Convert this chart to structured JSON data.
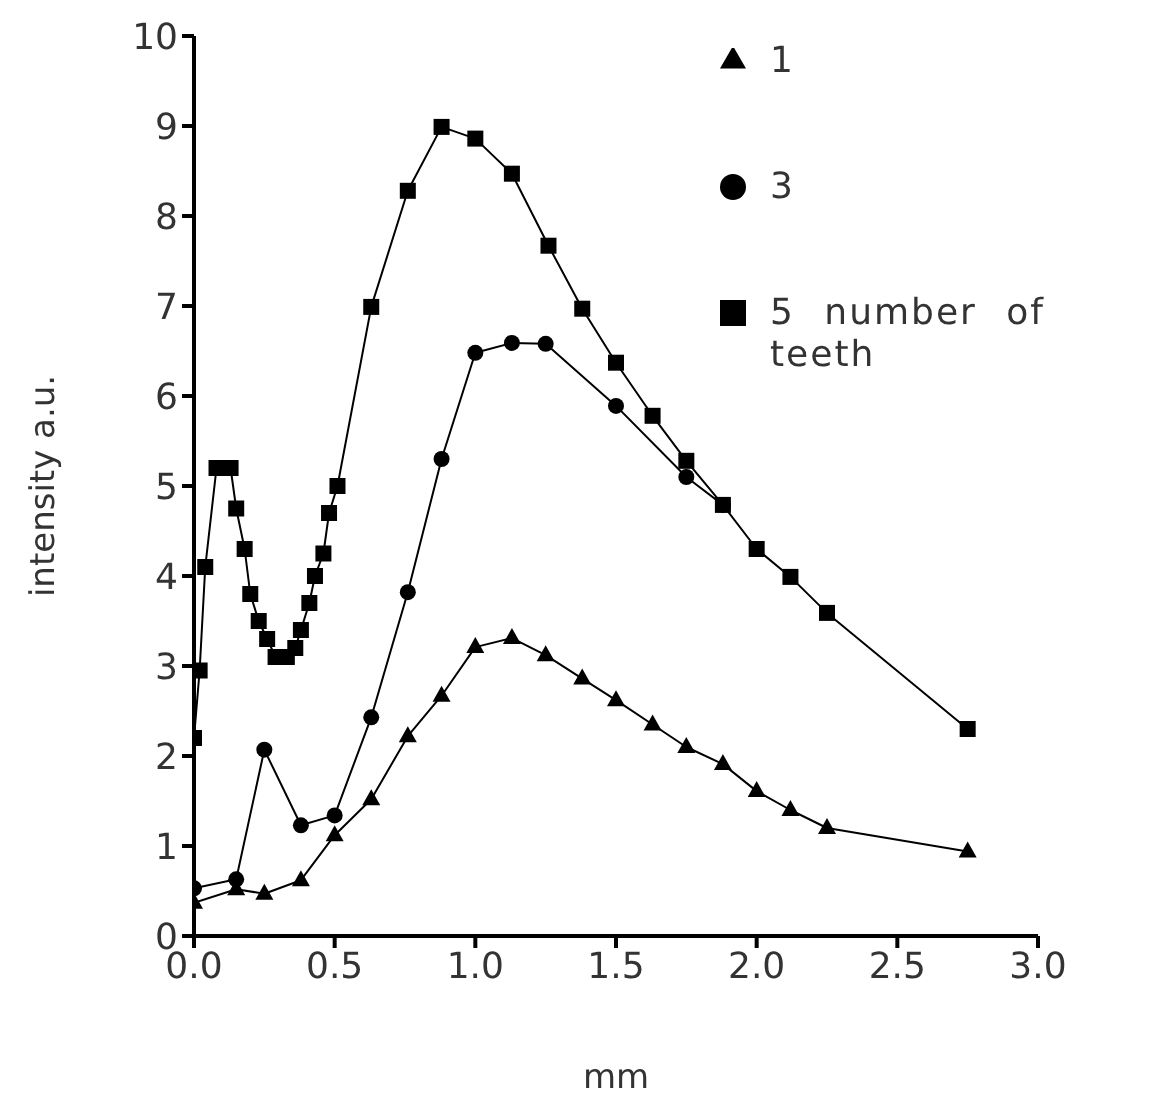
{
  "chart_data": {
    "type": "line",
    "xlabel": "mm",
    "ylabel": "intensity a.u.",
    "legend_title": "number of teeth",
    "legend": "top right",
    "grid": false,
    "line_style": "solid",
    "xlim": [
      0,
      3
    ],
    "xticks": [
      {
        "value": 0,
        "label": "0.0"
      },
      {
        "value": 0.5,
        "label": "0.5"
      },
      {
        "value": 1,
        "label": "1.0"
      },
      {
        "value": 1.5,
        "label": "1.5"
      },
      {
        "value": 2,
        "label": "2.0"
      },
      {
        "value": 2.5,
        "label": "2.5"
      },
      {
        "value": 3,
        "label": "3.0"
      }
    ],
    "ylim": [
      0,
      10
    ],
    "yticks": [
      0,
      1,
      2,
      3,
      4,
      5,
      6,
      7,
      8,
      9,
      10
    ],
    "series": [
      {
        "name": "1",
        "color": "#000000",
        "marker": "triangle",
        "x": [
          0,
          0.15,
          0.25,
          0.38,
          0.5,
          0.63,
          0.76,
          0.88,
          1.0,
          1.13,
          1.25,
          1.38,
          1.5,
          1.63,
          1.75,
          1.88,
          2.0,
          2.12,
          2.25,
          2.75
        ],
        "values": [
          0.37,
          0.52,
          0.47,
          0.62,
          1.12,
          1.52,
          2.22,
          2.67,
          3.21,
          3.31,
          3.12,
          2.86,
          2.62,
          2.35,
          2.1,
          1.91,
          1.61,
          1.4,
          1.2,
          0.94
        ]
      },
      {
        "name": "3",
        "color": "#000000",
        "marker": "circle",
        "x": [
          0,
          0.15,
          0.25,
          0.38,
          0.5,
          0.63,
          0.76,
          0.88,
          1.0,
          1.13,
          1.25,
          1.5,
          1.75,
          1.88
        ],
        "values": [
          0.53,
          0.63,
          2.07,
          1.23,
          1.34,
          2.43,
          3.82,
          5.3,
          6.48,
          6.59,
          6.58,
          5.89,
          5.1,
          4.79
        ]
      },
      {
        "name": "5",
        "color": "#000000",
        "marker": "square",
        "x": [
          0,
          0.02,
          0.04,
          0.08,
          0.13,
          0.15,
          0.18,
          0.2,
          0.23,
          0.26,
          0.29,
          0.33,
          0.36,
          0.38,
          0.41,
          0.43,
          0.46,
          0.48,
          0.51,
          0.63,
          0.76,
          0.88,
          1.0,
          1.13,
          1.26,
          1.38,
          1.5,
          1.63,
          1.75,
          1.88,
          2.0,
          2.12,
          2.25,
          2.75
        ],
        "values": [
          2.2,
          2.95,
          4.1,
          5.2,
          5.2,
          4.75,
          4.3,
          3.8,
          3.5,
          3.3,
          3.1,
          3.1,
          3.2,
          3.4,
          3.7,
          4.0,
          4.25,
          4.7,
          5.0,
          6.99,
          8.28,
          8.99,
          8.86,
          8.47,
          7.67,
          6.97,
          6.37,
          5.78,
          5.28,
          4.79,
          4.3,
          3.99,
          3.59,
          2.3
        ]
      }
    ]
  }
}
